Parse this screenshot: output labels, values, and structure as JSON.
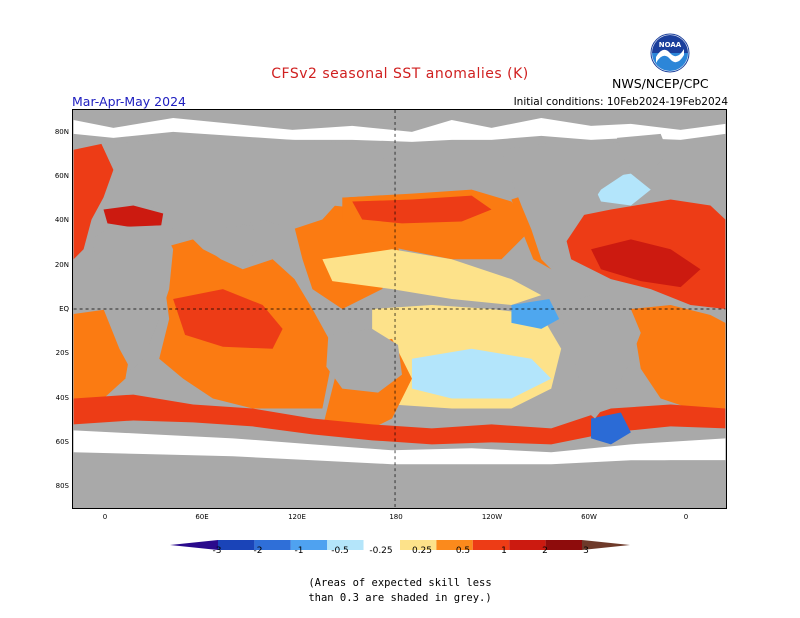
{
  "header": {
    "title": "CFSv2 seasonal SST anomalies (K)",
    "season": "Mar-Apr-May 2024",
    "initial_conditions": "Initial conditions: 10Feb2024-19Feb2024",
    "agency": "NWS/NCEP/CPC",
    "logo_text": "NOAA"
  },
  "map": {
    "lat_labels": [
      "80N",
      "60N",
      "40N",
      "20N",
      "EQ",
      "20S",
      "40S",
      "60S",
      "80S"
    ],
    "lon_labels": [
      "0",
      "60E",
      "120E",
      "180",
      "120W",
      "60W",
      "0"
    ],
    "colors": {
      "land": "#a9a9a9",
      "grey_skill": "#c8c8c8",
      "white": "#ffffff",
      "light_orange": "#fde28a",
      "orange": "#fb7b12",
      "red_orange": "#ed3c16",
      "red": "#cc1a10",
      "dark_red": "#8e0c0c",
      "light_blue": "#b3e5fb",
      "mid_blue": "#4ea7ef",
      "blue": "#2b6bd6"
    }
  },
  "colorbar": {
    "labels": [
      "-3",
      "-2",
      "-1",
      "-0.5",
      "-0.25",
      "0.25",
      "0.5",
      "1",
      "2",
      "3"
    ],
    "colors": [
      "#2a0a8c",
      "#1a44b8",
      "#2f6fd8",
      "#4fa2f0",
      "#b4e5fa",
      "#ffffff",
      "#fde28a",
      "#fb8a1c",
      "#ed3c16",
      "#cc1a10",
      "#8e0c0c",
      "#6e3a2a"
    ]
  },
  "note": {
    "line1": "(Areas of expected skill less",
    "line2": "than 0.3 are shaded in grey.)"
  }
}
